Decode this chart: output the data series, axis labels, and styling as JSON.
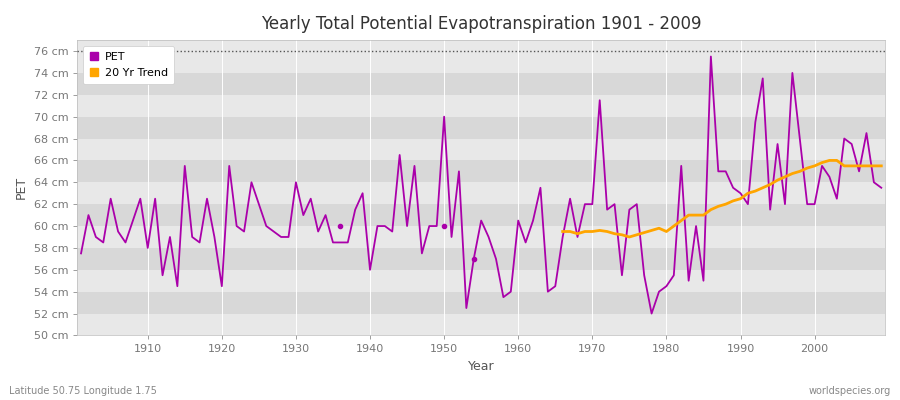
{
  "title": "Yearly Total Potential Evapotranspiration 1901 - 2009",
  "xlabel": "Year",
  "ylabel": "PET",
  "footnote_left": "Latitude 50.75 Longitude 1.75",
  "footnote_right": "worldspecies.org",
  "ylim": [
    50,
    77
  ],
  "ytick_step": 2,
  "bg_color": "#ffffff",
  "plot_bg_color": "#e8e8e8",
  "band_color_light": "#e8e8e8",
  "band_color_dark": "#d8d8d8",
  "grid_color": "#ffffff",
  "pet_color": "#aa00aa",
  "trend_color": "#ffa500",
  "dotted_line_y": 76,
  "years": [
    1901,
    1902,
    1903,
    1904,
    1905,
    1906,
    1907,
    1908,
    1909,
    1910,
    1911,
    1912,
    1913,
    1914,
    1915,
    1916,
    1917,
    1918,
    1919,
    1920,
    1921,
    1922,
    1923,
    1924,
    1925,
    1926,
    1927,
    1928,
    1929,
    1930,
    1931,
    1932,
    1933,
    1934,
    1935,
    1936,
    1937,
    1938,
    1939,
    1940,
    1941,
    1942,
    1943,
    1944,
    1945,
    1946,
    1947,
    1948,
    1949,
    1950,
    1951,
    1952,
    1953,
    1954,
    1955,
    1956,
    1957,
    1958,
    1959,
    1960,
    1961,
    1962,
    1963,
    1964,
    1965,
    1966,
    1967,
    1968,
    1969,
    1970,
    1971,
    1972,
    1973,
    1974,
    1975,
    1976,
    1977,
    1978,
    1979,
    1980,
    1981,
    1982,
    1983,
    1984,
    1985,
    1986,
    1987,
    1988,
    1989,
    1990,
    1991,
    1992,
    1993,
    1994,
    1995,
    1996,
    1997,
    1998,
    1999,
    2000,
    2001,
    2002,
    2003,
    2004,
    2005,
    2006,
    2007,
    2008,
    2009
  ],
  "pet": [
    57.5,
    61.0,
    59.0,
    58.5,
    62.5,
    59.5,
    58.5,
    60.5,
    62.5,
    58.0,
    62.5,
    55.5,
    59.0,
    54.5,
    65.5,
    59.0,
    58.5,
    62.5,
    59.0,
    54.5,
    65.5,
    60.0,
    59.5,
    64.0,
    62.0,
    60.0,
    59.5,
    59.0,
    59.0,
    64.0,
    61.0,
    62.5,
    59.5,
    61.0,
    58.5,
    58.5,
    58.5,
    61.5,
    63.0,
    56.0,
    60.0,
    60.0,
    59.5,
    66.5,
    60.0,
    65.5,
    57.5,
    60.0,
    60.0,
    70.0,
    59.0,
    65.0,
    52.5,
    57.0,
    60.5,
    59.0,
    57.0,
    53.5,
    54.0,
    60.5,
    58.5,
    60.5,
    63.5,
    54.0,
    54.5,
    59.0,
    62.5,
    59.0,
    62.0,
    62.0,
    71.5,
    61.5,
    62.0,
    55.5,
    61.5,
    62.0,
    55.5,
    52.0,
    54.0,
    54.5,
    55.5,
    65.5,
    55.0,
    60.0,
    55.0,
    75.5,
    65.0,
    65.0,
    63.5,
    63.0,
    62.0,
    69.5,
    73.5,
    61.5,
    67.5,
    62.0,
    74.0,
    68.0,
    62.0,
    62.0,
    65.5,
    64.5,
    62.5,
    68.0,
    67.5,
    65.0,
    68.5,
    64.0,
    63.5
  ],
  "trend_years": [
    1966,
    1967,
    1968,
    1969,
    1970,
    1971,
    1972,
    1973,
    1974,
    1975,
    1976,
    1977,
    1978,
    1979,
    1980,
    1981,
    1982,
    1983,
    1984,
    1985,
    1986,
    1987,
    1988,
    1989,
    1990,
    1991,
    1992,
    1993,
    1994,
    1995,
    1996,
    1997,
    1998,
    1999,
    2000,
    2001,
    2002,
    2003,
    2004,
    2005,
    2006,
    2007,
    2008,
    2009
  ],
  "trend": [
    59.5,
    59.5,
    59.3,
    59.5,
    59.5,
    59.6,
    59.5,
    59.3,
    59.2,
    59.0,
    59.2,
    59.4,
    59.6,
    59.8,
    59.5,
    60.0,
    60.5,
    61.0,
    61.0,
    61.0,
    61.5,
    61.8,
    62.0,
    62.3,
    62.5,
    63.0,
    63.2,
    63.5,
    63.8,
    64.2,
    64.5,
    64.8,
    65.0,
    65.3,
    65.5,
    65.8,
    66.0,
    66.0,
    65.5,
    65.5,
    65.5,
    65.5,
    65.5,
    65.5
  ],
  "isolated_points": [
    {
      "year": 1936,
      "value": 60.0
    },
    {
      "year": 1950,
      "value": 60.0
    },
    {
      "year": 1954,
      "value": 57.0
    }
  ]
}
